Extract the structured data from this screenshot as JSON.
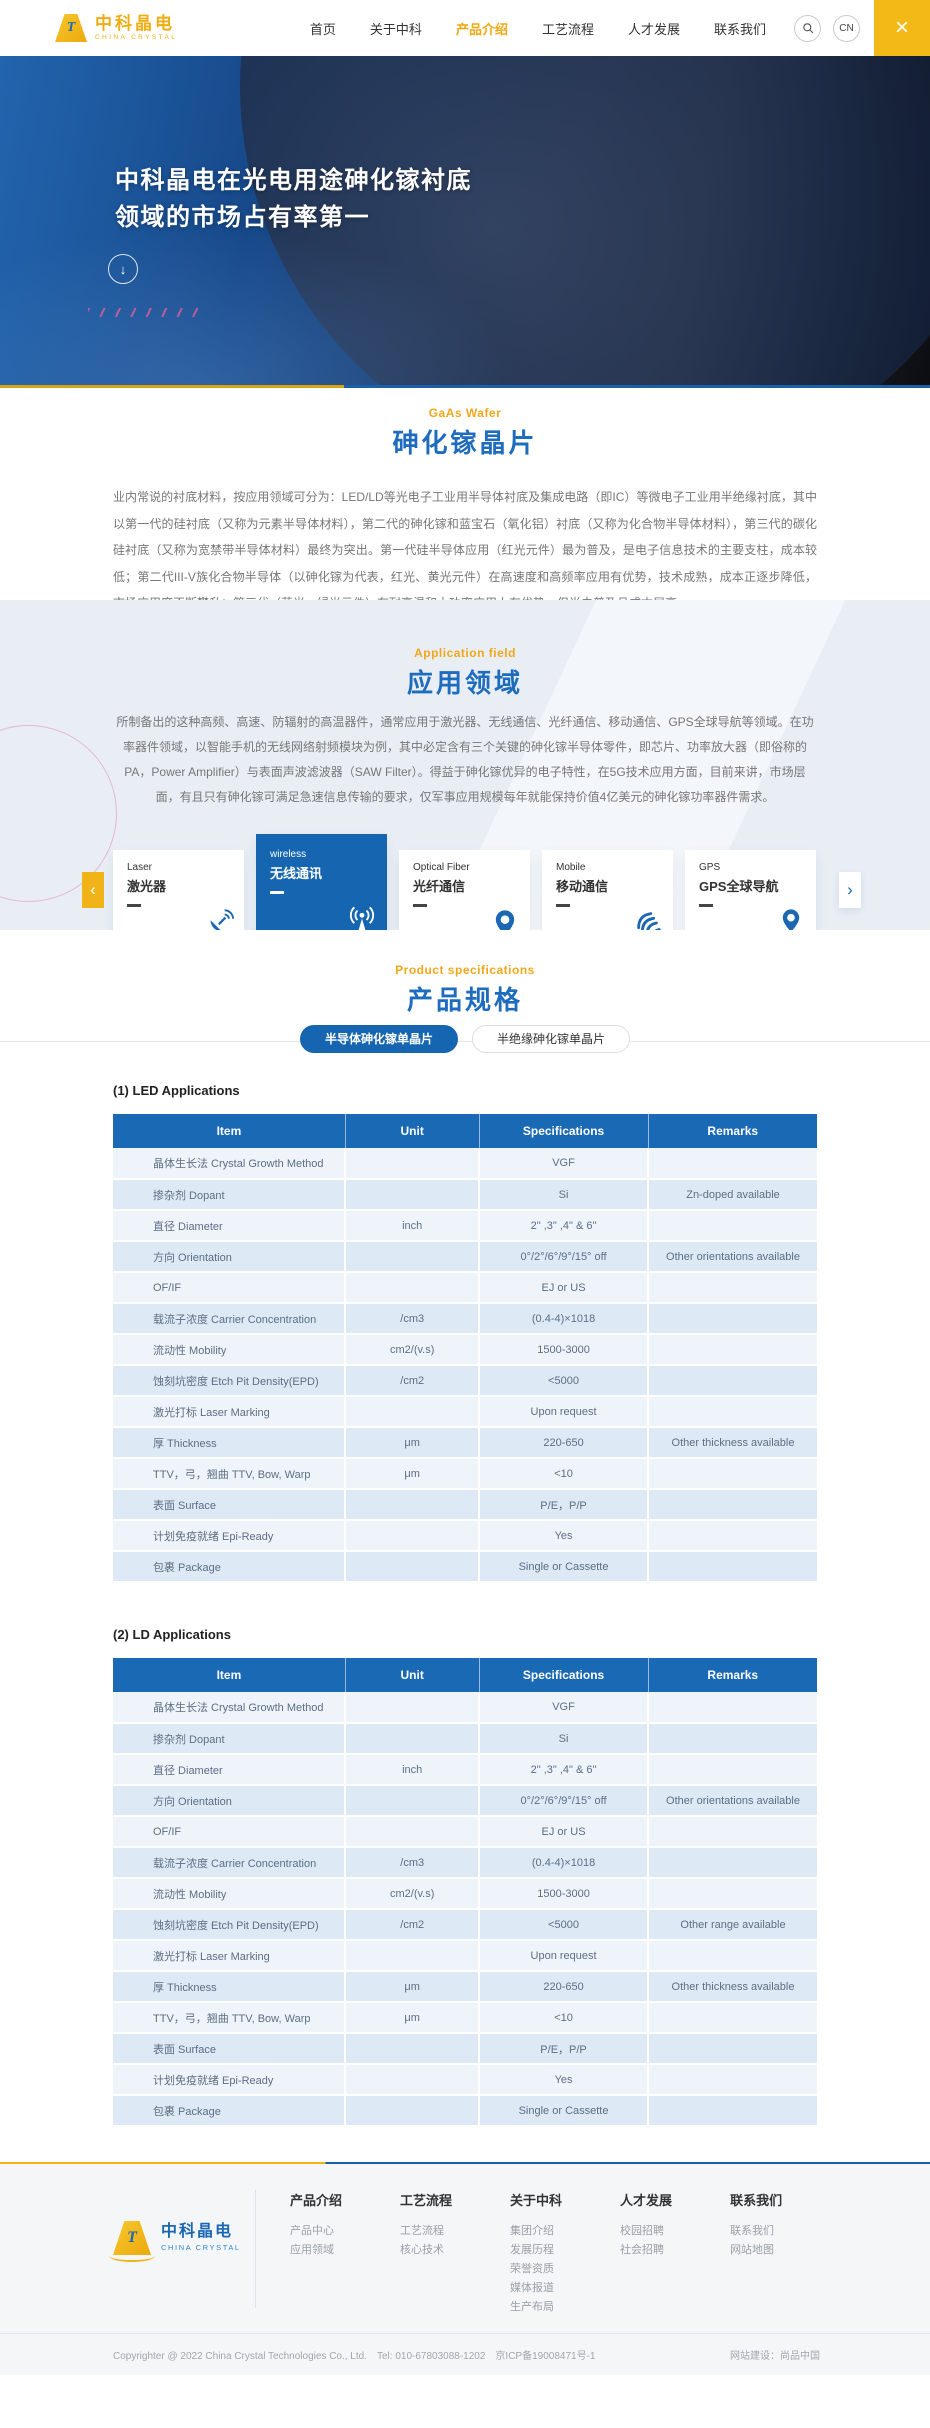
{
  "colors": {
    "brand_yellow": "#F0B419",
    "brand_blue": "#1B67B2",
    "table_header_blue": "#1A69B5",
    "section_bg": "#E9EEF5"
  },
  "brand": {
    "name": "中科晶电",
    "caption": "CHINA CRYSTAL",
    "monogram": "T"
  },
  "header": {
    "nav": [
      {
        "label": "首页",
        "active": false
      },
      {
        "label": "关于中科",
        "active": false
      },
      {
        "label": "产品介绍",
        "active": true
      },
      {
        "label": "工艺流程",
        "active": false
      },
      {
        "label": "人才发展",
        "active": false
      },
      {
        "label": "联系我们",
        "active": false
      }
    ],
    "search_icon": "search-icon",
    "lang_label": "CN",
    "menu_icon": "close-icon"
  },
  "hero": {
    "title_line1": "中科晶电在光电用途砷化镓衬底",
    "title_line2": "领域的市场占有率第一",
    "scroll_icon": "down-arrow-icon"
  },
  "gaas": {
    "label": "GaAs Wafer",
    "title": "砷化镓晶片",
    "paragraph": "业内常说的衬底材料，按应用领域可分为：LED/LD等光电子工业用半导体衬底及集成电路（即IC）等微电子工业用半绝缘衬底，其中以第一代的硅衬底（又称为元素半导体材料），第二代的砷化镓和蓝宝石（氧化铝）衬底（又称为化合物半导体材料），第三代的碳化硅衬底（又称为宽禁带半导体材料）最终为突出。第一代硅半导体应用（红光元件）最为普及，是电子信息技术的主要支柱，成本较低；第二代III-V族化合物半导体（以砷化镓为代表，红光、黄光元件）在高速度和高频率应用有优势，技术成熟，成本正逐步降低，市场应用度不断攀升；第三代（蓝光、绿光元件）在耐高温和大功率应用上有优势，但尚未普及且成本居高。"
  },
  "application": {
    "label": "Application field",
    "title": "应用领域",
    "paragraph": "所制备出的这种高频、高速、防辐射的高温器件，通常应用于激光器、无线通信、光纤通信、移动通信、GPS全球导航等领域。在功率器件领域，以智能手机的无线网络射频模块为例，其中必定含有三个关键的砷化镓半导体零件，即芯片、功率放大器（即俗称的PA，Power Amplifier）与表面声波滤波器（SAW Filter）。得益于砷化镓优异的电子特性，在5G技术应用方面，目前来讲，市场层面，有且只有砷化镓可满足急速信息传输的要求，仅军事应用规模每年就能保持价值4亿美元的砷化镓功率器件需求。",
    "prev_icon": "chevron-left-icon",
    "next_icon": "chevron-right-icon",
    "cards": [
      {
        "en": "Laser",
        "zh": "激光器",
        "icon": "satellite-dish-icon",
        "active": false
      },
      {
        "en": "wireless",
        "zh": "无线通讯",
        "icon": "broadcast-tower-icon",
        "active": true
      },
      {
        "en": "Optical Fiber",
        "zh": "光纤通信",
        "icon": "location-pin-icon",
        "active": false
      },
      {
        "en": "Mobile",
        "zh": "移动通信",
        "icon": "mobile-network-icon",
        "active": false
      },
      {
        "en": "GPS",
        "zh": "GPS全球导航",
        "icon": "gps-pin-icon",
        "active": false
      }
    ]
  },
  "specs": {
    "label": "Product specifications",
    "title": "产品规格",
    "tabs": [
      {
        "label": "半导体砷化镓单晶片",
        "active": true
      },
      {
        "label": "半绝缘砷化镓单晶片",
        "active": false
      }
    ],
    "tables": [
      {
        "heading": "(1)  LED Applications",
        "columns": [
          "Item",
          "Unit",
          "Specifications",
          "Remarks"
        ],
        "rows": [
          [
            "晶体生长法 Crystal Growth Method",
            "",
            "VGF",
            ""
          ],
          [
            "掺杂剂 Dopant",
            "",
            "Si",
            "Zn-doped available"
          ],
          [
            "直径 Diameter",
            "inch",
            "2\" ,3\" ,4\" & 6\"",
            ""
          ],
          [
            "方向 Orientation",
            "",
            "0°/2°/6°/9°/15° off",
            "Other orientations available"
          ],
          [
            "OF/IF",
            "",
            "EJ or US",
            ""
          ],
          [
            "载流子浓度 Carrier Concentration",
            "/cm3",
            "(0.4-4)×1018",
            ""
          ],
          [
            "流动性 Mobility",
            "cm2/(v.s)",
            "1500-3000",
            ""
          ],
          [
            "蚀刻坑密度 Etch Pit Density(EPD)",
            "/cm2",
            "<5000",
            ""
          ],
          [
            "激光打标 Laser Marking",
            "",
            "Upon request",
            ""
          ],
          [
            "厚 Thickness",
            "μm",
            "220-650",
            "Other thickness available"
          ],
          [
            "TTV，弓，翘曲 TTV, Bow, Warp",
            "μm",
            "<10",
            ""
          ],
          [
            "表面 Surface",
            "",
            "P/E，P/P",
            ""
          ],
          [
            "计划免疫就绪 Epi-Ready",
            "",
            "Yes",
            ""
          ],
          [
            "包裹 Package",
            "",
            "Single or Cassette",
            ""
          ]
        ]
      },
      {
        "heading": "(2)  LD Applications",
        "columns": [
          "Item",
          "Unit",
          "Specifications",
          "Remarks"
        ],
        "rows": [
          [
            "晶体生长法 Crystal Growth Method",
            "",
            "VGF",
            ""
          ],
          [
            "掺杂剂 Dopant",
            "",
            "Si",
            ""
          ],
          [
            "直径 Diameter",
            "inch",
            "2\" ,3\" ,4\" & 6\"",
            ""
          ],
          [
            "方向 Orientation",
            "",
            "0°/2°/6°/9°/15° off",
            "Other orientations available"
          ],
          [
            "OF/IF",
            "",
            "EJ or US",
            ""
          ],
          [
            "载流子浓度 Carrier Concentration",
            "/cm3",
            "(0.4-4)×1018",
            ""
          ],
          [
            "流动性 Mobility",
            "cm2/(v.s)",
            "1500-3000",
            ""
          ],
          [
            "蚀刻坑密度 Etch Pit Density(EPD)",
            "/cm2",
            "<5000",
            "Other range available"
          ],
          [
            "激光打标 Laser Marking",
            "",
            "Upon request",
            ""
          ],
          [
            "厚 Thickness",
            "μm",
            "220-650",
            "Other thickness available"
          ],
          [
            "TTV，弓，翘曲 TTV, Bow, Warp",
            "μm",
            "<10",
            ""
          ],
          [
            "表面 Surface",
            "",
            "P/E，P/P",
            ""
          ],
          [
            "计划免疫就绪 Epi-Ready",
            "",
            "Yes",
            ""
          ],
          [
            "包裹 Package",
            "",
            "Single or Cassette",
            ""
          ]
        ]
      }
    ]
  },
  "footer": {
    "columns": [
      {
        "title": "产品介绍",
        "links": [
          "产品中心",
          "应用领域"
        ]
      },
      {
        "title": "工艺流程",
        "links": [
          "工艺流程",
          "核心技术"
        ]
      },
      {
        "title": "关于中科",
        "links": [
          "集团介绍",
          "发展历程",
          "荣誉资质",
          "媒体报道",
          "生产布局"
        ]
      },
      {
        "title": "人才发展",
        "links": [
          "校园招聘",
          "社会招聘"
        ]
      },
      {
        "title": "联系我们",
        "links": [
          "联系我们",
          "网站地图"
        ]
      }
    ],
    "copyright": "Copyrighter @ 2022 China Crystal Technologies Co., Ltd.　Tel: 010-67803088-1202　京ICP备19008471号-1",
    "builder": "网站建设：尚品中国"
  }
}
